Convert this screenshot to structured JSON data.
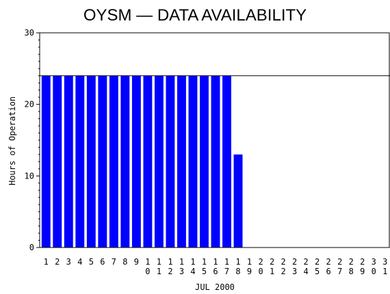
{
  "chart_data": {
    "type": "bar",
    "title": "OYSM — DATA AVAILABILITY",
    "xlabel": "JUL 2000",
    "ylabel": "Hours of Operation",
    "ylim": [
      0,
      30
    ],
    "yticks": [
      "0",
      "10",
      "20",
      "30"
    ],
    "reference_line": 24,
    "bar_color": "#0000ff",
    "categories": [
      "1",
      "2",
      "3",
      "4",
      "5",
      "6",
      "7",
      "8",
      "9",
      "10",
      "11",
      "12",
      "13",
      "14",
      "15",
      "16",
      "17",
      "18",
      "19",
      "20",
      "21",
      "22",
      "23",
      "24",
      "25",
      "26",
      "27",
      "28",
      "29",
      "30",
      "31"
    ],
    "values": [
      24,
      24,
      24,
      24,
      24,
      24,
      24,
      24,
      24,
      24,
      24,
      24,
      24,
      24,
      24,
      24,
      24,
      13,
      0,
      0,
      0,
      0,
      0,
      0,
      0,
      0,
      0,
      0,
      0,
      0,
      0
    ]
  }
}
